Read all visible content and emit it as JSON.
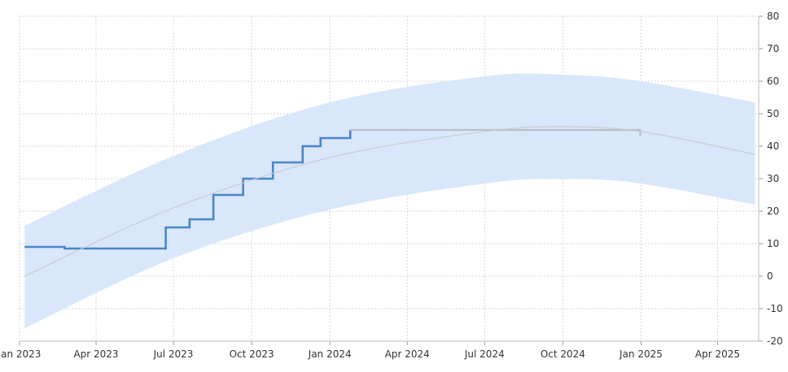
{
  "chart_data": {
    "type": "line",
    "title": "",
    "xlabel": "",
    "ylabel": "",
    "ylim": [
      -20,
      80
    ],
    "y_ticks": [
      -20,
      -10,
      0,
      10,
      20,
      30,
      40,
      50,
      60,
      70,
      80
    ],
    "x_ticks": [
      {
        "label": "Jan 2023",
        "date": "2023-01-01"
      },
      {
        "label": "Apr 2023",
        "date": "2023-04-01"
      },
      {
        "label": "Jul 2023",
        "date": "2023-07-01"
      },
      {
        "label": "Oct 2023",
        "date": "2023-10-01"
      },
      {
        "label": "Jan 2024",
        "date": "2024-01-01"
      },
      {
        "label": "Apr 2024",
        "date": "2024-04-01"
      },
      {
        "label": "Jul 2024",
        "date": "2024-07-01"
      },
      {
        "label": "Oct 2024",
        "date": "2024-10-01"
      },
      {
        "label": "Jan 2025",
        "date": "2025-01-01"
      },
      {
        "label": "Apr 2025",
        "date": "2025-04-01"
      }
    ],
    "grid": true,
    "y_axis_side": "right",
    "series": [
      {
        "kind": "step",
        "color": "#4a86c8",
        "points": [
          {
            "date": "2023-01-07",
            "value": 9
          },
          {
            "date": "2023-02-23",
            "value": 8.5
          },
          {
            "date": "2023-06-22",
            "value": 15
          },
          {
            "date": "2023-07-20",
            "value": 17.5
          },
          {
            "date": "2023-08-17",
            "value": 25
          },
          {
            "date": "2023-09-21",
            "value": 30
          },
          {
            "date": "2023-10-26",
            "value": 35
          },
          {
            "date": "2023-11-30",
            "value": 40
          },
          {
            "date": "2023-12-21",
            "value": 42.5
          },
          {
            "date": "2024-01-25",
            "value": 45
          },
          {
            "date": "2024-01-25",
            "value": 45
          }
        ]
      },
      {
        "kind": "step",
        "color": "#b8bec6",
        "points": [
          {
            "date": "2024-01-25",
            "value": 45
          },
          {
            "date": "2024-12-31",
            "value": 45
          },
          {
            "date": "2024-12-31",
            "value": 43
          }
        ]
      },
      {
        "kind": "trend",
        "color": "#c7cdd3",
        "points": [
          {
            "date": "2023-01-07",
            "value": 0
          },
          {
            "date": "2023-07-01",
            "value": 21
          },
          {
            "date": "2024-01-01",
            "value": 36.5
          },
          {
            "date": "2024-07-01",
            "value": 44.5
          },
          {
            "date": "2024-10-01",
            "value": 46
          },
          {
            "date": "2025-01-01",
            "value": 44.5
          },
          {
            "date": "2025-05-15",
            "value": 37.5
          }
        ]
      }
    ],
    "band": {
      "color": "#d7e6fa",
      "upper": [
        {
          "date": "2023-01-07",
          "value": 15.5
        },
        {
          "date": "2023-07-01",
          "value": 37
        },
        {
          "date": "2024-01-01",
          "value": 53.5
        },
        {
          "date": "2024-07-01",
          "value": 61.5
        },
        {
          "date": "2024-10-01",
          "value": 62
        },
        {
          "date": "2025-01-01",
          "value": 60
        },
        {
          "date": "2025-05-15",
          "value": 53.5
        }
      ],
      "lower": [
        {
          "date": "2023-01-07",
          "value": -16
        },
        {
          "date": "2023-07-01",
          "value": 5.5
        },
        {
          "date": "2024-01-01",
          "value": 20.5
        },
        {
          "date": "2024-07-01",
          "value": 28.5
        },
        {
          "date": "2024-10-01",
          "value": 30
        },
        {
          "date": "2025-01-01",
          "value": 28.5
        },
        {
          "date": "2025-05-15",
          "value": 22
        }
      ]
    }
  }
}
